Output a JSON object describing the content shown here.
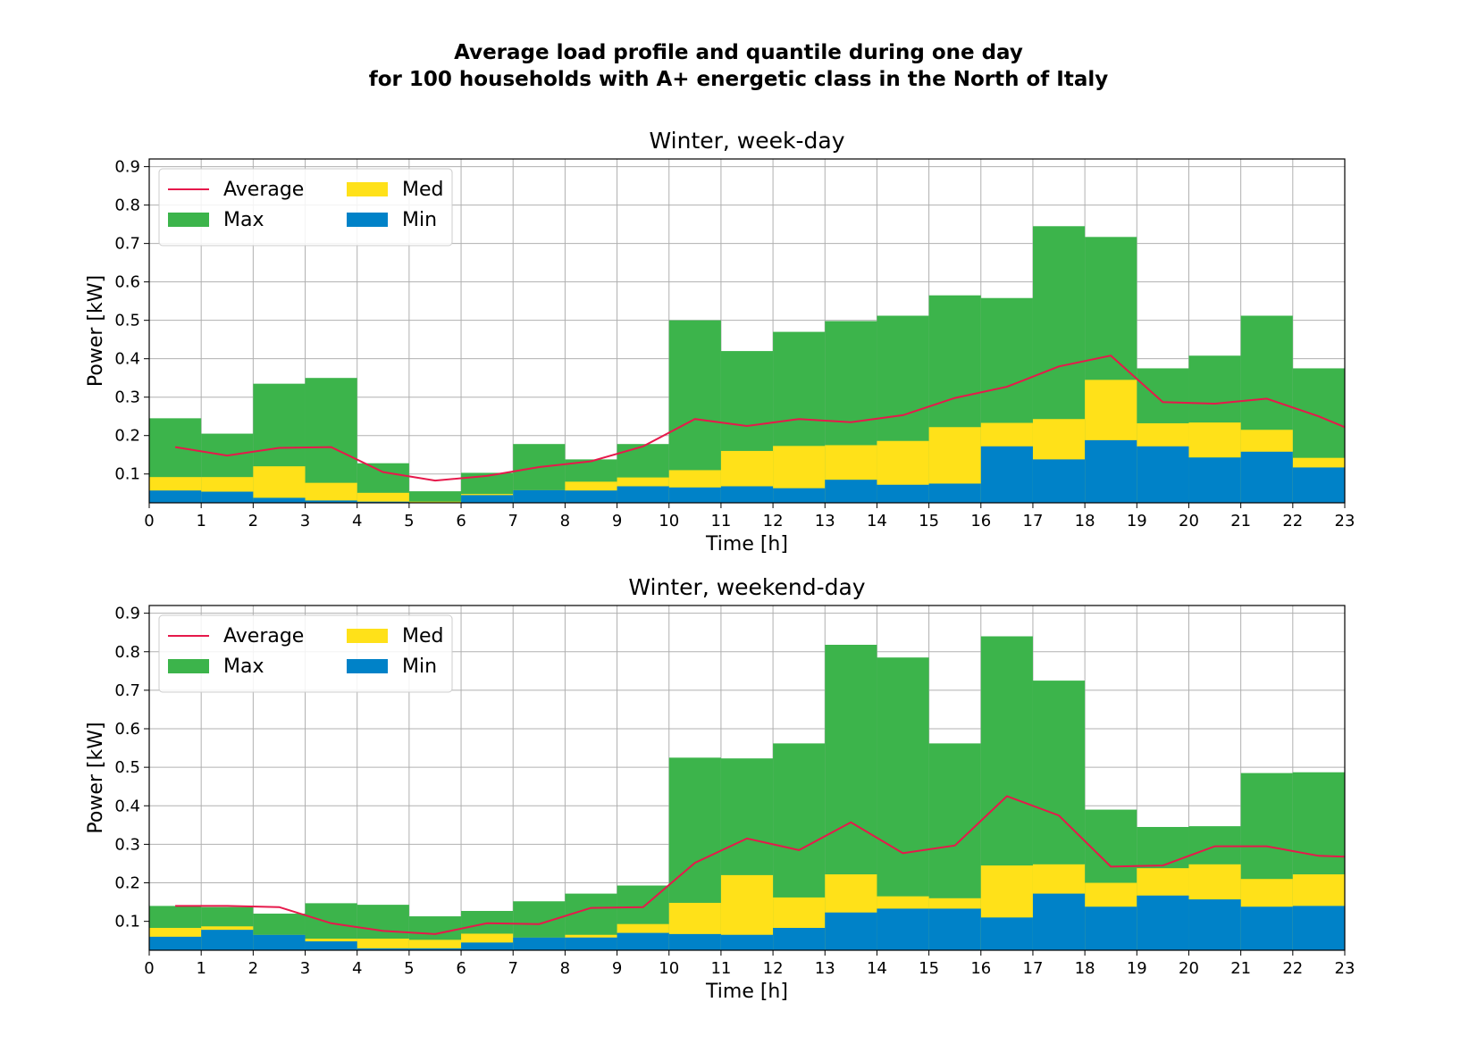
{
  "figure": {
    "title_line1": "Average load profile and quantile during one day",
    "title_line2": "for 100 households with A+ energetic class in the North of Italy"
  },
  "colors": {
    "max": "#3cb44b",
    "med": "#ffe119",
    "min": "#0082c8",
    "average": "#e6194b",
    "grid": "#b0b0b0"
  },
  "chart_data": [
    {
      "type": "bar",
      "title": "Winter, week-day",
      "xlabel": "Time [h]",
      "ylabel": "Power [kW]",
      "xlim": [
        0,
        23
      ],
      "ylim": [
        0.025,
        0.92
      ],
      "x_ticks": [
        0,
        1,
        2,
        3,
        4,
        5,
        6,
        7,
        8,
        9,
        10,
        11,
        12,
        13,
        14,
        15,
        16,
        17,
        18,
        19,
        20,
        21,
        22,
        23
      ],
      "y_ticks": [
        0.1,
        0.2,
        0.3,
        0.4,
        0.5,
        0.6,
        0.7,
        0.8,
        0.9
      ],
      "grid": true,
      "legend_position": "top-left",
      "legend": [
        "Average",
        "Max",
        "Med",
        "Min"
      ],
      "bins_start_hour": [
        0,
        1,
        2,
        3,
        4,
        5,
        6,
        7,
        8,
        9,
        10,
        11,
        12,
        13,
        14,
        15,
        16,
        17,
        18,
        19,
        20,
        21,
        22
      ],
      "series": [
        {
          "name": "Max",
          "values": [
            0.245,
            0.205,
            0.335,
            0.35,
            0.128,
            0.055,
            0.103,
            0.178,
            0.138,
            0.178,
            0.5,
            0.42,
            0.47,
            0.498,
            0.512,
            0.565,
            0.558,
            0.745,
            0.717,
            0.375,
            0.408,
            0.512,
            0.375
          ]
        },
        {
          "name": "Med",
          "values": [
            0.092,
            0.092,
            0.12,
            0.077,
            0.051,
            0.028,
            0.048,
            0.058,
            0.08,
            0.091,
            0.11,
            0.16,
            0.173,
            0.175,
            0.186,
            0.222,
            0.233,
            0.243,
            0.345,
            0.232,
            0.234,
            0.215,
            0.142
          ]
        },
        {
          "name": "Min",
          "values": [
            0.057,
            0.054,
            0.038,
            0.031,
            0.028,
            0.025,
            0.045,
            0.058,
            0.057,
            0.068,
            0.065,
            0.068,
            0.063,
            0.085,
            0.072,
            0.075,
            0.172,
            0.138,
            0.188,
            0.172,
            0.143,
            0.158,
            0.117
          ]
        },
        {
          "name": "Average",
          "x": [
            0.5,
            1.5,
            2.5,
            3.5,
            4.5,
            5.5,
            6.5,
            7.5,
            8.5,
            9.5,
            10.5,
            11.5,
            12.5,
            13.5,
            14.5,
            15.5,
            16.5,
            17.5,
            18.5,
            19.5,
            20.5,
            21.5,
            22.5,
            23
          ],
          "values": [
            0.17,
            0.148,
            0.168,
            0.17,
            0.105,
            0.083,
            0.095,
            0.118,
            0.133,
            0.172,
            0.243,
            0.225,
            0.243,
            0.235,
            0.253,
            0.298,
            0.327,
            0.38,
            0.408,
            0.287,
            0.283,
            0.296,
            0.25,
            0.222
          ]
        }
      ]
    },
    {
      "type": "bar",
      "title": "Winter, weekend-day",
      "xlabel": "Time [h]",
      "ylabel": "Power [kW]",
      "xlim": [
        0,
        23
      ],
      "ylim": [
        0.025,
        0.92
      ],
      "x_ticks": [
        0,
        1,
        2,
        3,
        4,
        5,
        6,
        7,
        8,
        9,
        10,
        11,
        12,
        13,
        14,
        15,
        16,
        17,
        18,
        19,
        20,
        21,
        22,
        23
      ],
      "y_ticks": [
        0.1,
        0.2,
        0.3,
        0.4,
        0.5,
        0.6,
        0.7,
        0.8,
        0.9
      ],
      "grid": true,
      "legend_position": "top-left",
      "legend": [
        "Average",
        "Max",
        "Med",
        "Min"
      ],
      "bins_start_hour": [
        0,
        1,
        2,
        3,
        4,
        5,
        6,
        7,
        8,
        9,
        10,
        11,
        12,
        13,
        14,
        15,
        16,
        17,
        18,
        19,
        20,
        21,
        22
      ],
      "series": [
        {
          "name": "Max",
          "values": [
            0.14,
            0.137,
            0.12,
            0.147,
            0.143,
            0.113,
            0.127,
            0.152,
            0.172,
            0.193,
            0.525,
            0.523,
            0.562,
            0.818,
            0.785,
            0.562,
            0.84,
            0.725,
            0.39,
            0.345,
            0.347,
            0.485,
            0.487
          ]
        },
        {
          "name": "Med",
          "values": [
            0.083,
            0.087,
            0.065,
            0.055,
            0.055,
            0.052,
            0.068,
            0.058,
            0.065,
            0.093,
            0.148,
            0.22,
            0.162,
            0.222,
            0.165,
            0.16,
            0.245,
            0.248,
            0.2,
            0.238,
            0.248,
            0.21,
            0.222
          ]
        },
        {
          "name": "Min",
          "values": [
            0.06,
            0.078,
            0.065,
            0.048,
            0.03,
            0.03,
            0.045,
            0.058,
            0.058,
            0.07,
            0.067,
            0.065,
            0.083,
            0.123,
            0.133,
            0.133,
            0.11,
            0.172,
            0.138,
            0.167,
            0.157,
            0.138,
            0.14
          ]
        },
        {
          "name": "Average",
          "x": [
            0.5,
            1.5,
            2.5,
            3.5,
            4.5,
            5.5,
            6.5,
            7.5,
            8.5,
            9.5,
            10.5,
            11.5,
            12.5,
            13.5,
            14.5,
            15.5,
            16.5,
            17.5,
            18.5,
            19.5,
            20.5,
            21.5,
            22.5,
            23
          ],
          "values": [
            0.14,
            0.14,
            0.137,
            0.095,
            0.075,
            0.067,
            0.095,
            0.093,
            0.135,
            0.137,
            0.252,
            0.315,
            0.285,
            0.357,
            0.277,
            0.297,
            0.425,
            0.375,
            0.242,
            0.245,
            0.295,
            0.295,
            0.27,
            0.268
          ]
        }
      ]
    }
  ]
}
